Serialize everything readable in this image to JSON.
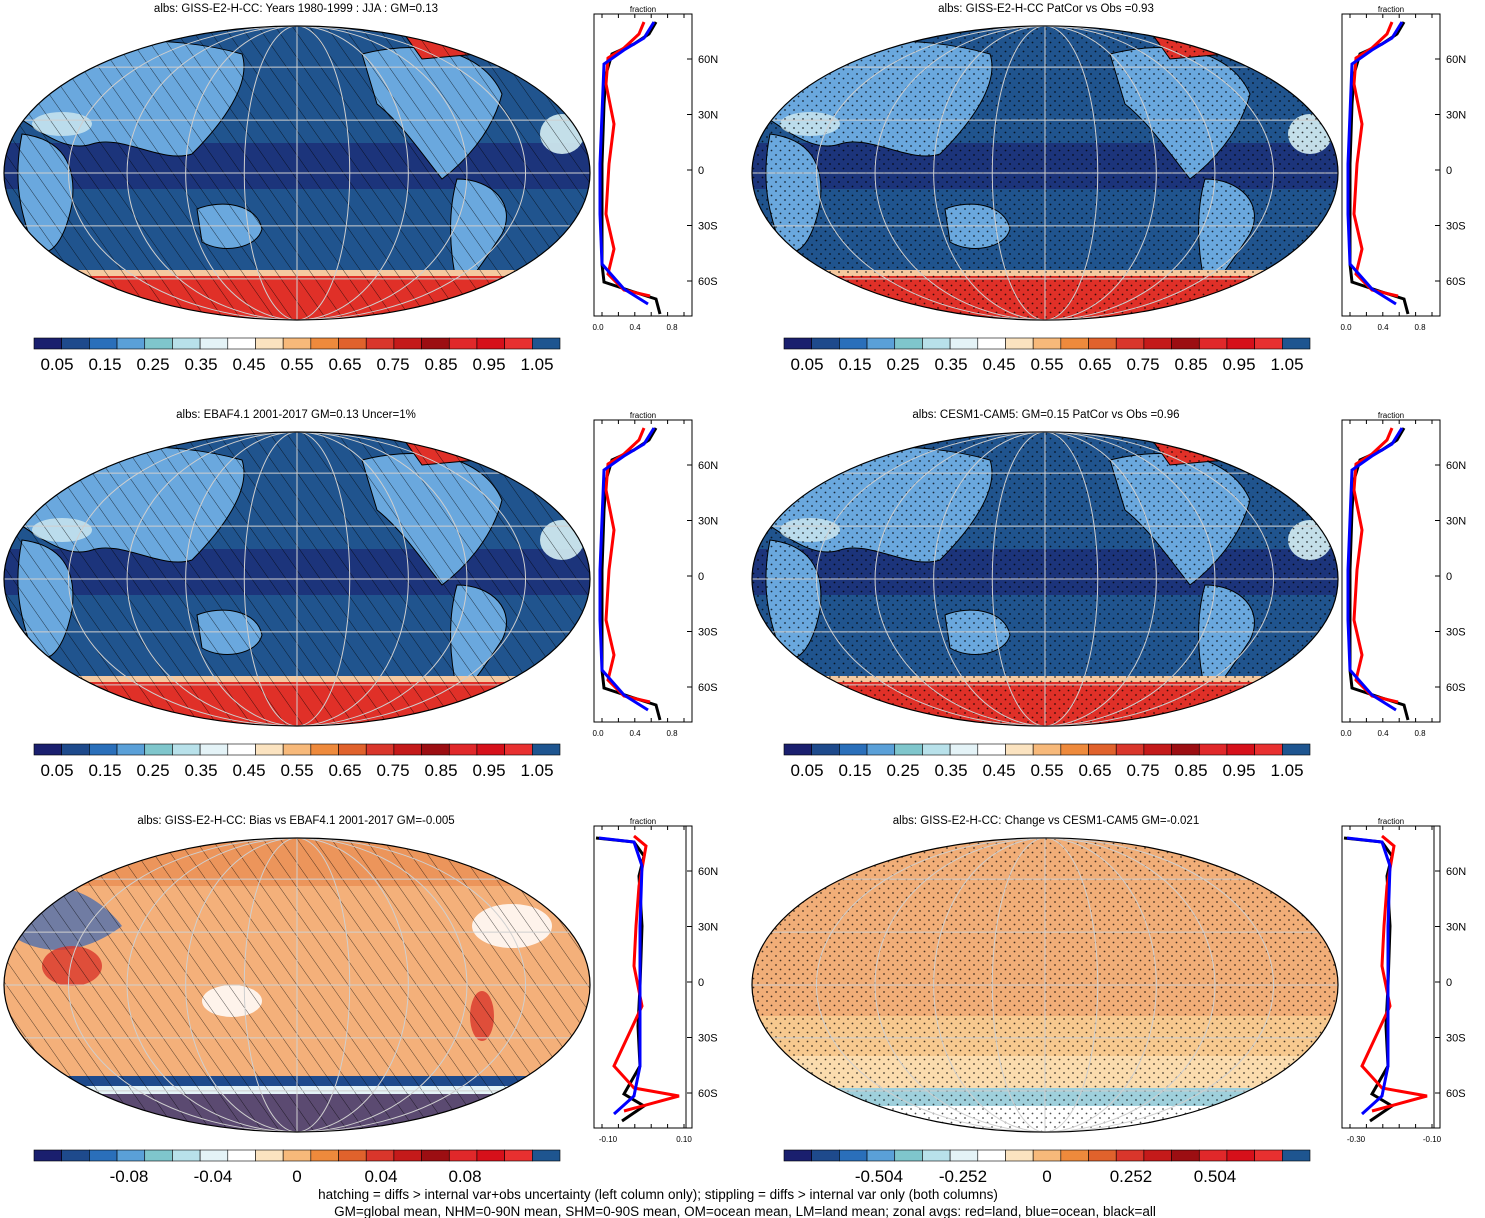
{
  "panels": [
    {
      "title": "albs: GISS-E2-H-CC: Years 1980-1999 : JJA : GM=0.13",
      "type": "mean",
      "colorbar_labels": [
        "0.05",
        "0.15",
        "0.25",
        "0.35",
        "0.45",
        "0.55",
        "0.65",
        "0.75",
        "0.85",
        "0.95",
        "1.05"
      ],
      "zonal_xticks": [
        "0.0",
        "0.4",
        "0.8"
      ],
      "zonal_header": "fraction",
      "lat_labels": [
        "60N",
        "30N",
        "0",
        "30S",
        "60S"
      ]
    },
    {
      "title": "albs: GISS-E2-H-CC PatCor vs Obs =0.93",
      "type": "mean",
      "colorbar_labels": [
        "0.05",
        "0.15",
        "0.25",
        "0.35",
        "0.45",
        "0.55",
        "0.65",
        "0.75",
        "0.85",
        "0.95",
        "1.05"
      ],
      "zonal_xticks": [
        "0.0",
        "0.4",
        "0.8"
      ],
      "zonal_header": "fraction",
      "lat_labels": [
        "60N",
        "30N",
        "0",
        "30S",
        "60S"
      ]
    },
    {
      "title": "albs: EBAF4.1 2001-2017 GM=0.13 Uncer=1%",
      "type": "mean",
      "colorbar_labels": [
        "0.05",
        "0.15",
        "0.25",
        "0.35",
        "0.45",
        "0.55",
        "0.65",
        "0.75",
        "0.85",
        "0.95",
        "1.05"
      ],
      "zonal_xticks": [
        "0.0",
        "0.4",
        "0.8"
      ],
      "zonal_header": "fraction",
      "lat_labels": [
        "60N",
        "30N",
        "0",
        "30S",
        "60S"
      ]
    },
    {
      "title": "albs: CESM1-CAM5: GM=0.15 PatCor vs Obs =0.96",
      "type": "mean",
      "colorbar_labels": [
        "0.05",
        "0.15",
        "0.25",
        "0.35",
        "0.45",
        "0.55",
        "0.65",
        "0.75",
        "0.85",
        "0.95",
        "1.05"
      ],
      "zonal_xticks": [
        "0.0",
        "0.4",
        "0.8"
      ],
      "zonal_header": "fraction",
      "lat_labels": [
        "60N",
        "30N",
        "0",
        "30S",
        "60S"
      ]
    },
    {
      "title": "albs: GISS-E2-H-CC: Bias vs EBAF4.1 2001-2017 GM=-0.005",
      "type": "diff",
      "colorbar_labels": [
        "-0.08",
        "-0.04",
        "0",
        "0.04",
        "0.08"
      ],
      "zonal_xticks": [
        "-0.10",
        "0.10"
      ],
      "zonal_header": "fraction",
      "lat_labels": [
        "60N",
        "30N",
        "0",
        "30S",
        "60S"
      ]
    },
    {
      "title": "albs: GISS-E2-H-CC: Change vs CESM1-CAM5 GM=-0.021",
      "type": "diff",
      "colorbar_labels": [
        "-0.504",
        "-0.252",
        "0",
        "0.252",
        "0.504"
      ],
      "zonal_xticks": [
        "-0.30",
        "-0.10"
      ],
      "zonal_header": "fraction",
      "lat_labels": [
        "60N",
        "30N",
        "0",
        "30S",
        "60S"
      ]
    }
  ],
  "colors": {
    "mean_scale": [
      "#1a1f6e",
      "#1e4a8c",
      "#2a6fba",
      "#5aa0d8",
      "#7fc6cc",
      "#b8e1ea",
      "#e4f3f7",
      "#ffffff",
      "#fbe3c0",
      "#f7b97a",
      "#ee8a3c",
      "#e0622c",
      "#d9362b",
      "#c41a1a",
      "#9c0e12",
      "#e0282a",
      "#d6101a",
      "#e83030",
      "#1e5590"
    ],
    "diff_scale": [
      "#1a1f6e",
      "#1e4a8c",
      "#2a6fba",
      "#5aa0d8",
      "#7fc6cc",
      "#b8e1ea",
      "#e4f3f7",
      "#ffffff",
      "#fbe3c0",
      "#f7b97a",
      "#ee8a3c",
      "#e0622c",
      "#d9362b",
      "#c41a1a",
      "#9c0e12",
      "#e0282a",
      "#d6101a",
      "#e83030",
      "#1e5590"
    ],
    "ocean": "#20548e",
    "ocean_dark": "#1c2f78",
    "land": "#6aa8de",
    "ice": "#e03028",
    "diff_bg": "#f4b07a",
    "diff_light": "#fbdcae",
    "zonal_land": "#ff0000",
    "zonal_ocean": "#0000ff",
    "zonal_all": "#000000"
  },
  "footer": {
    "line1": "hatching = diffs > internal var+obs uncertainty (left column only); stippling = diffs > internal var only (both columns)",
    "line2": "GM=global mean, NHM=0-90N mean, SHM=0-90S mean, OM=ocean mean, LM=land mean; zonal avgs: red=land, blue=ocean, black=all"
  }
}
